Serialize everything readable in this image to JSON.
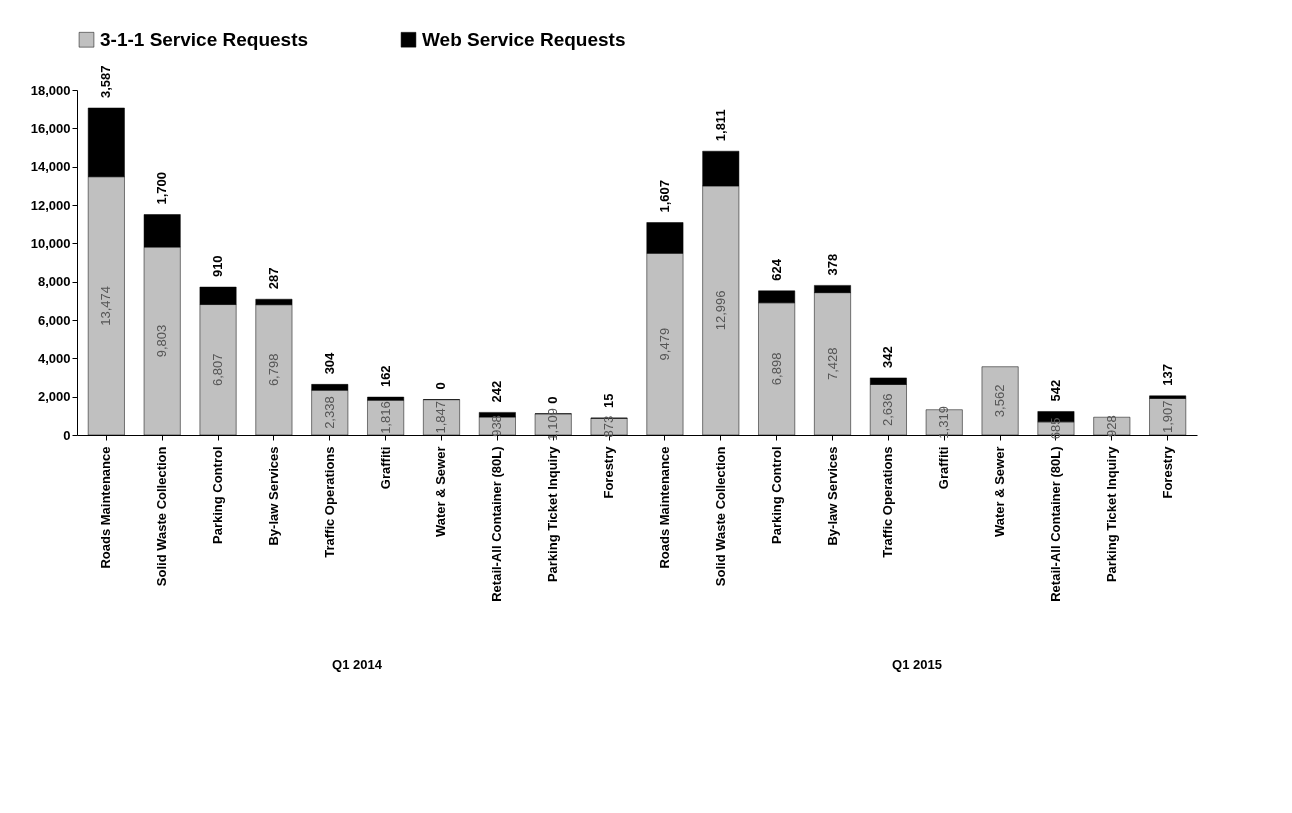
{
  "chart_data": {
    "type": "bar",
    "stacked": true,
    "categories": [
      "Roads Maintenance",
      "Solid Waste Collection",
      "Parking Control",
      "By-law Services",
      "Traffic Operations",
      "Graffiti",
      "Water & Sewer",
      "Retail-All Container (80L)",
      "Parking Ticket Inquiry",
      "Forestry",
      "Roads Maintenance",
      "Solid Waste Collection",
      "Parking Control",
      "By-law Services",
      "Traffic Operations",
      "Graffiti",
      "Water & Sewer",
      "Retail-All Container (80L)",
      "Parking Ticket Inquiry",
      "Forestry"
    ],
    "series": [
      {
        "name": "3-1-1 Service Requests",
        "color": "#c0c0c0",
        "values": [
          13474,
          9803,
          6807,
          6798,
          2338,
          1816,
          1847,
          938,
          1109,
          873,
          9479,
          12996,
          6898,
          7428,
          2636,
          1319,
          3562,
          685,
          928,
          1907
        ],
        "value_labels": [
          "13,474",
          "9,803",
          "6,807",
          "6,798",
          "2,338",
          "1,816",
          "1,847",
          "938",
          "1,109",
          "873",
          "9,479",
          "12,996",
          "6,898",
          "7,428",
          "2,636",
          "1,319",
          "3,562",
          "685",
          "928",
          "1,907"
        ]
      },
      {
        "name": "Web Service Requests",
        "color": "#000000",
        "values": [
          3587,
          1700,
          910,
          287,
          304,
          162,
          0,
          242,
          0,
          15,
          1607,
          1811,
          624,
          378,
          342,
          null,
          null,
          542,
          null,
          137
        ],
        "value_labels": [
          "3,587",
          "1,700",
          "910",
          "287",
          "304",
          "162",
          "0",
          "242",
          "0",
          "15",
          "1,607",
          "1,811",
          "624",
          "378",
          "342",
          null,
          null,
          "542",
          null,
          "137"
        ]
      }
    ],
    "ylim": [
      0,
      18000
    ],
    "yticks": [
      0,
      {
        "value": 2000,
        "label": "2,000"
      },
      {
        "value": 4000,
        "label": "4,000"
      },
      {
        "value": 6000,
        "label": "6,000"
      },
      {
        "value": 8000,
        "label": "8,000"
      },
      {
        "value": 10000,
        "label": "10,000"
      },
      {
        "value": 12000,
        "label": "12,000"
      },
      {
        "value": 14000,
        "label": "14,000"
      },
      {
        "value": 16000,
        "label": "16,000"
      },
      {
        "value": 18000,
        "label": "18,000"
      }
    ],
    "grid": false,
    "legend": "top",
    "annotations": [
      "Q1 2014",
      "Q1 2015"
    ]
  }
}
